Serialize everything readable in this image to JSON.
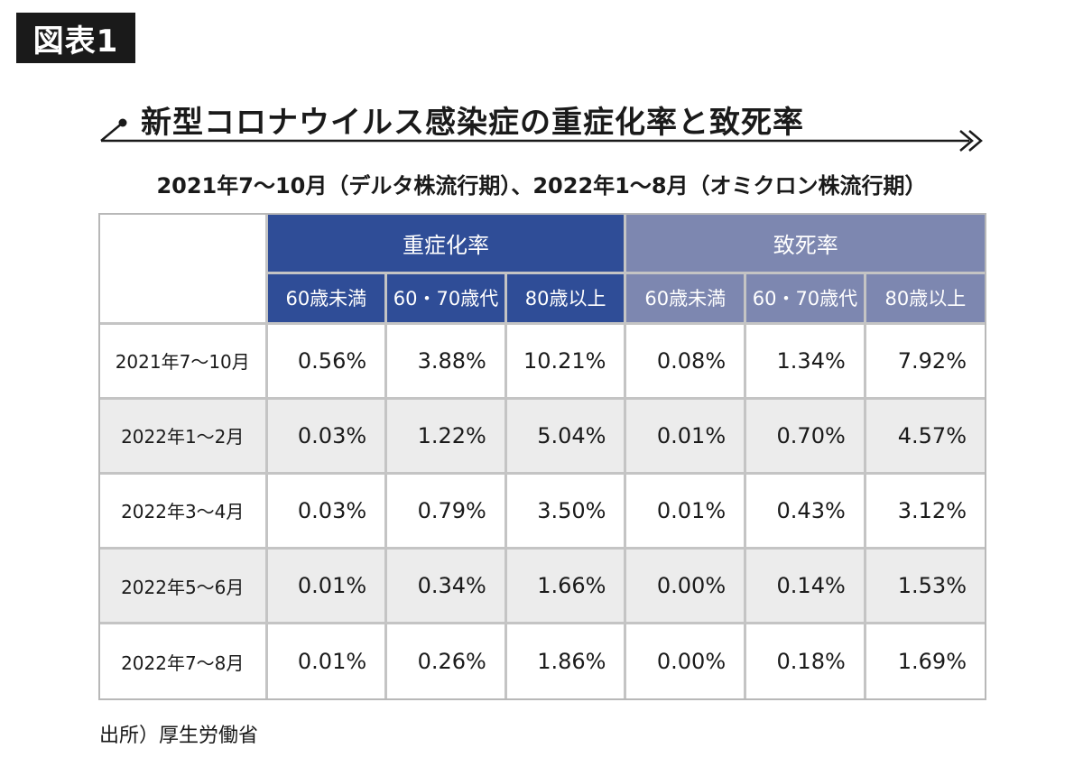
{
  "figure_label": "図表1",
  "title": "新型コロナウイルス感染症の重症化率と致死率",
  "subtitle": "2021年7～10月（デルタ株流行期）、2022年1～8月（オミクロン株流行期）",
  "source": "出所）厚生労働省",
  "colors": {
    "severity_header": "#2f4d97",
    "mortality_header": "#7d87b0",
    "alt_row": "#ececec",
    "grid": "#c4c4c4"
  },
  "chart_data": {
    "type": "table",
    "title": "新型コロナウイルス感染症の重症化率と致死率",
    "column_groups": [
      {
        "name": "重症化率",
        "columns": [
          "60歳未満",
          "60・70歳代",
          "80歳以上"
        ]
      },
      {
        "name": "致死率",
        "columns": [
          "60歳未満",
          "60・70歳代",
          "80歳以上"
        ]
      }
    ],
    "rows": [
      {
        "period": "2021年7～10月",
        "values": [
          "0.56%",
          "3.88%",
          "10.21%",
          "0.08%",
          "1.34%",
          "7.92%"
        ]
      },
      {
        "period": "2022年1～2月",
        "values": [
          "0.03%",
          "1.22%",
          "5.04%",
          "0.01%",
          "0.70%",
          "4.57%"
        ]
      },
      {
        "period": "2022年3～4月",
        "values": [
          "0.03%",
          "0.79%",
          "3.50%",
          "0.01%",
          "0.43%",
          "3.12%"
        ]
      },
      {
        "period": "2022年5～6月",
        "values": [
          "0.01%",
          "0.34%",
          "1.66%",
          "0.00%",
          "0.14%",
          "1.53%"
        ]
      },
      {
        "period": "2022年7～8月",
        "values": [
          "0.01%",
          "0.26%",
          "1.86%",
          "0.00%",
          "0.18%",
          "1.69%"
        ]
      }
    ]
  }
}
